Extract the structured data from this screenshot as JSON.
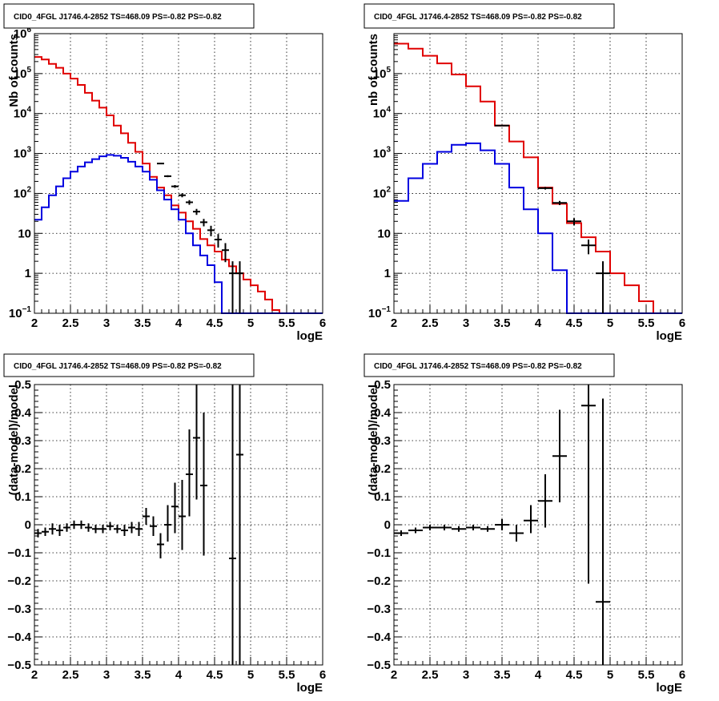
{
  "chart_data": [
    {
      "id": "counts-fine",
      "type": "histogram",
      "title": "CID0_4FGL J1746.4-2852 TS=468.09 PS=-0.82 PS=-0.82",
      "xlabel": "logE",
      "ylabel": "Nb of counts",
      "yscale": "log",
      "xlim": [
        2,
        6
      ],
      "ylim": [
        0.1,
        1000000
      ],
      "grid": true,
      "x_ticks": [
        "2",
        "2.5",
        "3",
        "3.5",
        "4",
        "4.5",
        "5",
        "5.5",
        "6"
      ],
      "y_ticks": [
        {
          "mantissa": "10",
          "exp": "−1",
          "v": 0.1
        },
        {
          "mantissa": "1",
          "exp": "",
          "v": 1
        },
        {
          "mantissa": "10",
          "exp": "",
          "v": 10
        },
        {
          "mantissa": "10",
          "exp": "2",
          "v": 100
        },
        {
          "mantissa": "10",
          "exp": "3",
          "v": 1000
        },
        {
          "mantissa": "10",
          "exp": "4",
          "v": 10000
        },
        {
          "mantissa": "10",
          "exp": "5",
          "v": 100000
        },
        {
          "mantissa": "10",
          "exp": "6",
          "v": 1000000
        }
      ],
      "bin_edges": [
        2.0,
        2.1,
        2.2,
        2.3,
        2.4,
        2.5,
        2.6,
        2.7,
        2.8,
        2.9,
        3.0,
        3.1,
        3.2,
        3.3,
        3.4,
        3.5,
        3.6,
        3.7,
        3.8,
        3.9,
        4.0,
        4.1,
        4.2,
        4.3,
        4.4,
        4.5,
        4.6,
        4.7,
        4.8,
        4.9,
        5.0,
        5.1,
        5.2,
        5.3,
        5.4,
        5.5,
        5.6,
        5.7,
        5.8,
        5.9,
        6.0
      ],
      "series": [
        {
          "color": "#e00000",
          "values": [
            260000,
            225000,
            175000,
            140000,
            100000,
            75000,
            52000,
            33000,
            21000,
            14000,
            9000,
            5000,
            3200,
            1850,
            1100,
            560,
            260,
            140,
            90,
            50,
            33,
            20,
            13,
            7.2,
            5.0,
            3.5,
            2.2,
            1.5,
            1.0,
            0.7,
            0.5,
            0.35,
            0.22,
            0.12,
            0.1,
            0.1,
            0.1,
            0.1,
            0.1,
            0.1
          ]
        },
        {
          "color": "#0000e0",
          "values": [
            22,
            45,
            90,
            150,
            240,
            350,
            470,
            600,
            720,
            850,
            920,
            880,
            780,
            620,
            470,
            350,
            220,
            120,
            70,
            40,
            22,
            10,
            5,
            2.8,
            1.6,
            0.6,
            0.1,
            0.1,
            0.1,
            0.1,
            0.1,
            0.1,
            0.1,
            0.1,
            0.1,
            0.1,
            0.1,
            0.1,
            0.1,
            0.1
          ]
        },
        {
          "color": "#000000",
          "type": "points",
          "points": [
            {
              "x": 3.75,
              "y": 560,
              "xerr": 0.05,
              "ylo": 540,
              "yhi": 580
            },
            {
              "x": 3.85,
              "y": 270,
              "xerr": 0.05,
              "ylo": 255,
              "yhi": 285
            },
            {
              "x": 3.95,
              "y": 150,
              "xerr": 0.05,
              "ylo": 138,
              "yhi": 162
            },
            {
              "x": 4.05,
              "y": 90,
              "xerr": 0.05,
              "ylo": 80,
              "yhi": 100
            },
            {
              "x": 4.15,
              "y": 60,
              "xerr": 0.05,
              "ylo": 52,
              "yhi": 68
            },
            {
              "x": 4.25,
              "y": 35,
              "xerr": 0.05,
              "ylo": 29,
              "yhi": 41
            },
            {
              "x": 4.35,
              "y": 19,
              "xerr": 0.05,
              "ylo": 15,
              "yhi": 23
            },
            {
              "x": 4.45,
              "y": 12,
              "xerr": 0.05,
              "ylo": 8.5,
              "yhi": 15.5
            },
            {
              "x": 4.55,
              "y": 7,
              "xerr": 0.05,
              "ylo": 4.4,
              "yhi": 9.6
            },
            {
              "x": 4.65,
              "y": 3.8,
              "xerr": 0.05,
              "ylo": 1.9,
              "yhi": 5.7
            },
            {
              "x": 4.75,
              "y": 1.0,
              "xerr": 0.05,
              "ylo": 0.1,
              "yhi": 2.0
            },
            {
              "x": 4.85,
              "y": 1.0,
              "xerr": 0.05,
              "ylo": 0.1,
              "yhi": 2.0
            }
          ]
        }
      ]
    },
    {
      "id": "counts-coarse",
      "type": "histogram",
      "title": "CID0_4FGL J1746.4-2852 TS=468.09 PS=-0.82 PS=-0.82",
      "xlabel": "logE",
      "ylabel": "nb of counts",
      "yscale": "log",
      "xlim": [
        2,
        6
      ],
      "ylim": [
        0.1,
        1000000
      ],
      "grid": true,
      "x_ticks": [
        "2",
        "2.5",
        "3",
        "3.5",
        "4",
        "4.5",
        "5",
        "5.5",
        "6"
      ],
      "y_ticks": [
        {
          "mantissa": "10",
          "exp": "−1",
          "v": 0.1
        },
        {
          "mantissa": "1",
          "exp": "",
          "v": 1
        },
        {
          "mantissa": "10",
          "exp": "",
          "v": 10
        },
        {
          "mantissa": "10",
          "exp": "2",
          "v": 100
        },
        {
          "mantissa": "10",
          "exp": "3",
          "v": 1000
        },
        {
          "mantissa": "10",
          "exp": "4",
          "v": 10000
        },
        {
          "mantissa": "10",
          "exp": "5",
          "v": 100000
        }
      ],
      "bin_edges": [
        2.0,
        2.2,
        2.4,
        2.6,
        2.8,
        3.0,
        3.2,
        3.4,
        3.6,
        3.8,
        4.0,
        4.2,
        4.4,
        4.6,
        4.8,
        5.0,
        5.2,
        5.4,
        5.6,
        5.8,
        6.0
      ],
      "series": [
        {
          "color": "#e00000",
          "values": [
            560000,
            420000,
            280000,
            180000,
            95000,
            48000,
            20000,
            5000,
            2000,
            800,
            140,
            55,
            18,
            8,
            3.5,
            1.0,
            0.5,
            0.2,
            0.1,
            0.1
          ]
        },
        {
          "color": "#0000e0",
          "values": [
            65,
            240,
            550,
            1100,
            1650,
            1800,
            1200,
            550,
            140,
            40,
            10,
            1.2,
            0.1,
            0.1,
            0.1,
            0.1,
            0.1,
            0.1,
            0.1,
            0.1
          ]
        },
        {
          "color": "#000000",
          "type": "points",
          "points": [
            {
              "x": 3.5,
              "y": 5000,
              "xerr": 0.1,
              "ylo": 4900,
              "yhi": 5100
            },
            {
              "x": 4.1,
              "y": 135,
              "xerr": 0.1,
              "ylo": 125,
              "yhi": 145
            },
            {
              "x": 4.3,
              "y": 58,
              "xerr": 0.1,
              "ylo": 51,
              "yhi": 65
            },
            {
              "x": 4.5,
              "y": 20,
              "xerr": 0.1,
              "ylo": 16,
              "yhi": 24
            },
            {
              "x": 4.7,
              "y": 5,
              "xerr": 0.1,
              "ylo": 3,
              "yhi": 7
            },
            {
              "x": 4.9,
              "y": 1.0,
              "xerr": 0.1,
              "ylo": 0.1,
              "yhi": 2.0
            }
          ]
        }
      ]
    },
    {
      "id": "residual-fine",
      "type": "scatter",
      "title": "CID0_4FGL J1746.4-2852 TS=468.09 PS=-0.82 PS=-0.82",
      "xlabel": "logE",
      "ylabel": "(data-model)/model",
      "yscale": "linear",
      "xlim": [
        2,
        6
      ],
      "ylim": [
        -0.5,
        0.5
      ],
      "grid": true,
      "x_ticks": [
        "2",
        "2.5",
        "3",
        "3.5",
        "4",
        "4.5",
        "5",
        "5.5",
        "6"
      ],
      "y_ticks": [
        {
          "label": "−0.5",
          "v": -0.5
        },
        {
          "label": "−0.4",
          "v": -0.4
        },
        {
          "label": "−0.3",
          "v": -0.3
        },
        {
          "label": "−0.2",
          "v": -0.2
        },
        {
          "label": "−0.1",
          "v": -0.1
        },
        {
          "label": "0",
          "v": 0
        },
        {
          "label": "0.1",
          "v": 0.1
        },
        {
          "label": "0.2",
          "v": 0.2
        },
        {
          "label": "0.3",
          "v": 0.3
        },
        {
          "label": "0.4",
          "v": 0.4
        },
        {
          "label": "0.5",
          "v": 0.5
        }
      ],
      "series": [
        {
          "color": "#000000",
          "type": "points",
          "points": [
            {
              "x": 2.05,
              "y": -0.03,
              "xerr": 0.05,
              "ylo": -0.045,
              "yhi": -0.015
            },
            {
              "x": 2.15,
              "y": -0.025,
              "xerr": 0.05,
              "ylo": -0.04,
              "yhi": -0.01
            },
            {
              "x": 2.25,
              "y": -0.015,
              "xerr": 0.05,
              "ylo": -0.035,
              "yhi": 0.005
            },
            {
              "x": 2.35,
              "y": -0.02,
              "xerr": 0.05,
              "ylo": -0.04,
              "yhi": 0.0
            },
            {
              "x": 2.45,
              "y": -0.01,
              "xerr": 0.05,
              "ylo": -0.025,
              "yhi": 0.005
            },
            {
              "x": 2.55,
              "y": 0.0,
              "xerr": 0.05,
              "ylo": -0.015,
              "yhi": 0.015
            },
            {
              "x": 2.65,
              "y": 0.0,
              "xerr": 0.05,
              "ylo": -0.015,
              "yhi": 0.015
            },
            {
              "x": 2.75,
              "y": -0.01,
              "xerr": 0.05,
              "ylo": -0.025,
              "yhi": 0.005
            },
            {
              "x": 2.85,
              "y": -0.015,
              "xerr": 0.05,
              "ylo": -0.03,
              "yhi": 0.0
            },
            {
              "x": 2.95,
              "y": -0.015,
              "xerr": 0.05,
              "ylo": -0.03,
              "yhi": 0.0
            },
            {
              "x": 3.05,
              "y": -0.005,
              "xerr": 0.05,
              "ylo": -0.02,
              "yhi": 0.01
            },
            {
              "x": 3.15,
              "y": -0.015,
              "xerr": 0.05,
              "ylo": -0.03,
              "yhi": 0.0
            },
            {
              "x": 3.25,
              "y": -0.02,
              "xerr": 0.05,
              "ylo": -0.04,
              "yhi": 0.0
            },
            {
              "x": 3.35,
              "y": -0.01,
              "xerr": 0.05,
              "ylo": -0.03,
              "yhi": 0.01
            },
            {
              "x": 3.45,
              "y": -0.015,
              "xerr": 0.05,
              "ylo": -0.04,
              "yhi": 0.01
            },
            {
              "x": 3.55,
              "y": 0.03,
              "xerr": 0.05,
              "ylo": 0.0,
              "yhi": 0.06
            },
            {
              "x": 3.65,
              "y": -0.005,
              "xerr": 0.05,
              "ylo": -0.04,
              "yhi": 0.03
            },
            {
              "x": 3.75,
              "y": -0.07,
              "xerr": 0.05,
              "ylo": -0.12,
              "yhi": -0.03
            },
            {
              "x": 3.85,
              "y": 0.0,
              "xerr": 0.05,
              "ylo": -0.06,
              "yhi": 0.07
            },
            {
              "x": 3.95,
              "y": 0.065,
              "xerr": 0.05,
              "ylo": -0.03,
              "yhi": 0.15
            },
            {
              "x": 4.05,
              "y": 0.03,
              "xerr": 0.05,
              "ylo": -0.09,
              "yhi": 0.16
            },
            {
              "x": 4.15,
              "y": 0.18,
              "xerr": 0.05,
              "ylo": 0.03,
              "yhi": 0.34
            },
            {
              "x": 4.25,
              "y": 0.31,
              "xerr": 0.05,
              "ylo": 0.09,
              "yhi": 0.5
            },
            {
              "x": 4.35,
              "y": 0.14,
              "xerr": 0.05,
              "ylo": -0.11,
              "yhi": 0.4
            },
            {
              "x": 4.75,
              "y": -0.12,
              "xerr": 0.05,
              "ylo": -0.5,
              "yhi": 0.5
            },
            {
              "x": 4.85,
              "y": 0.25,
              "xerr": 0.05,
              "ylo": -0.5,
              "yhi": 0.5
            }
          ]
        }
      ]
    },
    {
      "id": "residual-coarse",
      "type": "scatter",
      "title": "CID0_4FGL J1746.4-2852 TS=468.09 PS=-0.82 PS=-0.82",
      "xlabel": "logE",
      "ylabel": "(data-model)/model",
      "yscale": "linear",
      "xlim": [
        2,
        6
      ],
      "ylim": [
        -0.5,
        0.5
      ],
      "grid": true,
      "x_ticks": [
        "2",
        "2.5",
        "3",
        "3.5",
        "4",
        "4.5",
        "5",
        "5.5",
        "6"
      ],
      "y_ticks": [
        {
          "label": "−0.5",
          "v": -0.5
        },
        {
          "label": "−0.4",
          "v": -0.4
        },
        {
          "label": "−0.3",
          "v": -0.3
        },
        {
          "label": "−0.2",
          "v": -0.2
        },
        {
          "label": "−0.1",
          "v": -0.1
        },
        {
          "label": "0",
          "v": 0
        },
        {
          "label": "0.1",
          "v": 0.1
        },
        {
          "label": "0.2",
          "v": 0.2
        },
        {
          "label": "0.3",
          "v": 0.3
        },
        {
          "label": "0.4",
          "v": 0.4
        },
        {
          "label": "0.5",
          "v": 0.5
        }
      ],
      "series": [
        {
          "color": "#000000",
          "type": "points",
          "points": [
            {
              "x": 2.1,
              "y": -0.03,
              "xerr": 0.1,
              "ylo": -0.04,
              "yhi": -0.02
            },
            {
              "x": 2.3,
              "y": -0.02,
              "xerr": 0.1,
              "ylo": -0.03,
              "yhi": -0.01
            },
            {
              "x": 2.5,
              "y": -0.01,
              "xerr": 0.1,
              "ylo": -0.02,
              "yhi": 0.0
            },
            {
              "x": 2.7,
              "y": -0.01,
              "xerr": 0.1,
              "ylo": -0.02,
              "yhi": 0.0
            },
            {
              "x": 2.9,
              "y": -0.015,
              "xerr": 0.1,
              "ylo": -0.025,
              "yhi": -0.005
            },
            {
              "x": 3.1,
              "y": -0.01,
              "xerr": 0.1,
              "ylo": -0.02,
              "yhi": 0.0
            },
            {
              "x": 3.3,
              "y": -0.015,
              "xerr": 0.1,
              "ylo": -0.025,
              "yhi": -0.005
            },
            {
              "x": 3.5,
              "y": 0.0,
              "xerr": 0.1,
              "ylo": -0.02,
              "yhi": 0.02
            },
            {
              "x": 3.7,
              "y": -0.03,
              "xerr": 0.1,
              "ylo": -0.06,
              "yhi": 0.0
            },
            {
              "x": 3.9,
              "y": 0.015,
              "xerr": 0.1,
              "ylo": -0.03,
              "yhi": 0.07
            },
            {
              "x": 4.1,
              "y": 0.085,
              "xerr": 0.1,
              "ylo": -0.01,
              "yhi": 0.18
            },
            {
              "x": 4.3,
              "y": 0.245,
              "xerr": 0.1,
              "ylo": 0.08,
              "yhi": 0.41
            },
            {
              "x": 4.7,
              "y": 0.425,
              "xerr": 0.1,
              "ylo": -0.21,
              "yhi": 0.5
            },
            {
              "x": 4.9,
              "y": -0.275,
              "xerr": 0.1,
              "ylo": -0.5,
              "yhi": 0.45
            }
          ]
        }
      ]
    }
  ]
}
